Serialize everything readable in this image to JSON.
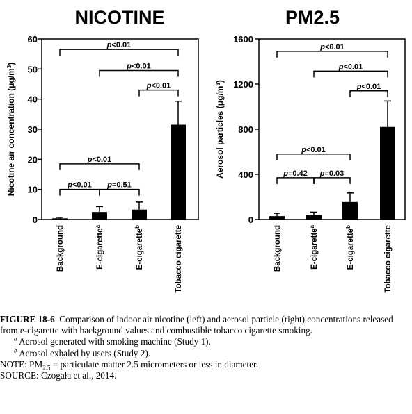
{
  "chart_data": [
    {
      "type": "bar",
      "title": "NICOTINE",
      "ylabel_text": "Nicotine air concentration (μg/m",
      "ylabel_sup": "3",
      "ylabel_close": ")",
      "ylim": [
        0,
        60
      ],
      "yticks": [
        0,
        10,
        20,
        30,
        40,
        50,
        60
      ],
      "categories": [
        {
          "text": "Background",
          "sup": ""
        },
        {
          "text": "E-cigarette",
          "sup": "a"
        },
        {
          "text": "E-cigarette",
          "sup": "b"
        },
        {
          "text": "Tobacco cigarette",
          "sup": ""
        }
      ],
      "values": [
        0.4,
        2.5,
        3.3,
        31.5
      ],
      "errors": [
        0.3,
        1.8,
        2.5,
        7.8
      ],
      "comparisons": [
        {
          "from": 0,
          "to": 3,
          "y": 56.5,
          "label": "p<0.01"
        },
        {
          "from": 1,
          "to": 3,
          "y": 49.5,
          "label": "p<0.01"
        },
        {
          "from": 2,
          "to": 3,
          "y": 43.0,
          "label": "p<0.01"
        },
        {
          "from": 0,
          "to": 2,
          "y": 18.5,
          "label": "p<0.01"
        },
        {
          "from": 0,
          "to": 1,
          "y": 10.0,
          "label": "p<0.01"
        },
        {
          "from": 1,
          "to": 2,
          "y": 10.0,
          "label": "p=0.51"
        }
      ]
    },
    {
      "type": "bar",
      "title": "PM2.5",
      "ylabel_text": "Aerosol particles (μg/m",
      "ylabel_sup": "3",
      "ylabel_close": ")",
      "ylim": [
        0,
        1600
      ],
      "yticks": [
        0,
        400,
        800,
        1200,
        1600
      ],
      "categories": [
        {
          "text": "Background",
          "sup": ""
        },
        {
          "text": "E-cigarette",
          "sup": "a"
        },
        {
          "text": "E-cigarette",
          "sup": "b"
        },
        {
          "text": "Tobacco cigarette",
          "sup": ""
        }
      ],
      "values": [
        30,
        40,
        155,
        820
      ],
      "errors": [
        25,
        25,
        80,
        230
      ],
      "comparisons": [
        {
          "from": 0,
          "to": 3,
          "y": 1490,
          "label": "p<0.01"
        },
        {
          "from": 1,
          "to": 3,
          "y": 1315,
          "label": "p<0.01"
        },
        {
          "from": 2,
          "to": 3,
          "y": 1140,
          "label": "p<0.01"
        },
        {
          "from": 0,
          "to": 2,
          "y": 580,
          "label": "p<0.01"
        },
        {
          "from": 0,
          "to": 1,
          "y": 370,
          "label": "p=0.42"
        },
        {
          "from": 1,
          "to": 2,
          "y": 370,
          "label": "p=0.03"
        }
      ]
    }
  ],
  "caption": {
    "figure_label": "FIGURE 18-6",
    "text": "Comparison of indoor air nicotine (left) and aerosol particle (right) concentrations released from e-cigarette with background values and combustible tobacco cigarette smoking.",
    "note_a_mark": "a",
    "note_a": "Aerosol generated with smoking machine (Study 1).",
    "note_b_mark": "b",
    "note_b": "Aerosol exhaled by users (Study 2).",
    "note_prefix": "NOTE: PM",
    "note_sub": "2.5",
    "note_suffix": "= particulate matter 2.5 micrometers or less in diameter.",
    "source": "SOURCE: Czogała et al., 2014."
  },
  "colors": {
    "bar": "#000000",
    "axis": "#000000",
    "background": "#ffffff"
  }
}
